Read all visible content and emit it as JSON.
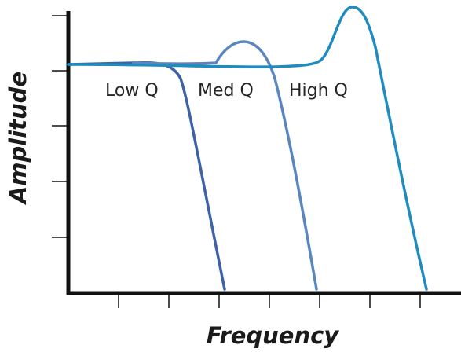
{
  "figure": {
    "x_axis_title": "Frequency",
    "y_axis_title": "Amplitude",
    "curves": [
      {
        "label": "Low Q",
        "color": "#3d62a6"
      },
      {
        "label": "Med Q",
        "color": "#5a86bf"
      },
      {
        "label": "High Q",
        "color": "#1f8bbf"
      }
    ]
  }
}
